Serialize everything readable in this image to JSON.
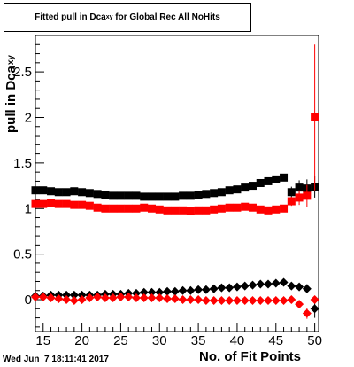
{
  "title": {
    "prefix": "Fitted pull in Dca",
    "subscript": "xy",
    "suffix": " for Global Rec All NoHits"
  },
  "footer": {
    "timestamp": "Wed Jun  7 18:11:41 2017"
  },
  "chart_data": {
    "type": "scatter",
    "title": "Fitted pull in Dca_xy for Global Rec All NoHits",
    "xlabel": "No. of Fit Points",
    "ylabel_main": "pull in Dca",
    "ylabel_sub": "xy",
    "xlim": [
      14,
      50.5
    ],
    "ylim": [
      -0.35,
      2.9
    ],
    "x_ticks": [
      15,
      20,
      25,
      30,
      35,
      40,
      45,
      50
    ],
    "y_ticks": [
      0,
      0.5,
      1,
      1.5,
      2,
      2.5
    ],
    "grid": false,
    "legend": "none",
    "series": [
      {
        "marker": "square",
        "color": "#000000",
        "x": [
          14,
          15,
          16,
          17,
          18,
          19,
          20,
          21,
          22,
          23,
          24,
          25,
          26,
          27,
          28,
          29,
          30,
          31,
          32,
          33,
          34,
          35,
          36,
          37,
          38,
          39,
          40,
          41,
          42,
          43,
          44,
          45,
          46,
          47,
          48,
          49,
          50
        ],
        "y": [
          1.2,
          1.2,
          1.19,
          1.18,
          1.18,
          1.19,
          1.18,
          1.17,
          1.16,
          1.15,
          1.14,
          1.14,
          1.14,
          1.14,
          1.13,
          1.13,
          1.13,
          1.13,
          1.13,
          1.14,
          1.14,
          1.15,
          1.16,
          1.17,
          1.18,
          1.2,
          1.21,
          1.23,
          1.25,
          1.28,
          1.3,
          1.32,
          1.34,
          1.18,
          1.23,
          1.22,
          1.24
        ],
        "yerr": [
          0,
          0,
          0,
          0,
          0,
          0,
          0,
          0,
          0,
          0,
          0,
          0,
          0,
          0,
          0,
          0,
          0,
          0,
          0,
          0,
          0,
          0,
          0,
          0,
          0,
          0,
          0,
          0,
          0,
          0,
          0,
          0,
          0,
          0.06,
          0.08,
          0.1,
          0.12
        ]
      },
      {
        "marker": "square",
        "color": "#ff0000",
        "x": [
          14,
          15,
          16,
          17,
          18,
          19,
          20,
          21,
          22,
          23,
          24,
          25,
          26,
          27,
          28,
          29,
          30,
          31,
          32,
          33,
          34,
          35,
          36,
          37,
          38,
          39,
          40,
          41,
          42,
          43,
          44,
          45,
          46,
          47,
          48,
          49,
          50
        ],
        "y": [
          1.05,
          1.05,
          1.06,
          1.05,
          1.05,
          1.04,
          1.04,
          1.03,
          1.01,
          1.0,
          1.0,
          1.0,
          1.0,
          1.0,
          1.01,
          1.0,
          0.99,
          0.98,
          0.98,
          0.98,
          0.97,
          0.98,
          0.98,
          0.99,
          1.0,
          1.01,
          1.01,
          1.02,
          1.01,
          0.99,
          0.98,
          0.99,
          1.0,
          1.08,
          1.12,
          1.14,
          2.0
        ],
        "yerr": [
          0,
          0,
          0,
          0,
          0,
          0,
          0,
          0,
          0,
          0,
          0,
          0,
          0,
          0,
          0,
          0,
          0,
          0,
          0,
          0,
          0,
          0,
          0,
          0,
          0,
          0,
          0,
          0,
          0,
          0,
          0,
          0,
          0,
          0.05,
          0.08,
          0.12,
          0.8
        ]
      },
      {
        "marker": "diamond",
        "color": "#000000",
        "x": [
          14,
          15,
          16,
          17,
          18,
          19,
          20,
          21,
          22,
          23,
          24,
          25,
          26,
          27,
          28,
          29,
          30,
          31,
          32,
          33,
          34,
          35,
          36,
          37,
          38,
          39,
          40,
          41,
          42,
          43,
          44,
          45,
          46,
          47,
          48,
          49,
          50
        ],
        "y": [
          0.04,
          0.04,
          0.05,
          0.05,
          0.05,
          0.05,
          0.05,
          0.05,
          0.05,
          0.06,
          0.06,
          0.06,
          0.07,
          0.07,
          0.08,
          0.08,
          0.08,
          0.09,
          0.09,
          0.1,
          0.1,
          0.11,
          0.11,
          0.12,
          0.13,
          0.13,
          0.14,
          0.15,
          0.16,
          0.17,
          0.17,
          0.18,
          0.19,
          0.15,
          0.14,
          0.12,
          -0.1
        ],
        "yerr": [
          0,
          0,
          0,
          0,
          0,
          0,
          0,
          0,
          0,
          0,
          0,
          0,
          0,
          0,
          0,
          0,
          0,
          0,
          0,
          0,
          0,
          0,
          0,
          0,
          0,
          0,
          0,
          0,
          0,
          0,
          0,
          0,
          0,
          0,
          0.03,
          0.05,
          0.1
        ]
      },
      {
        "marker": "diamond",
        "color": "#ff0000",
        "x": [
          14,
          15,
          16,
          17,
          18,
          19,
          20,
          21,
          22,
          23,
          24,
          25,
          26,
          27,
          28,
          29,
          30,
          31,
          32,
          33,
          34,
          35,
          36,
          37,
          38,
          39,
          40,
          41,
          42,
          43,
          44,
          45,
          46,
          47,
          48,
          49,
          50
        ],
        "y": [
          0.03,
          0.03,
          0.02,
          0.01,
          0.0,
          -0.01,
          0.0,
          0.02,
          0.03,
          0.02,
          0.02,
          0.03,
          0.03,
          0.02,
          0.02,
          0.02,
          0.02,
          0.01,
          0.01,
          0.0,
          0.0,
          0.0,
          -0.01,
          -0.01,
          -0.01,
          -0.01,
          -0.01,
          -0.01,
          -0.01,
          -0.01,
          -0.01,
          -0.01,
          -0.01,
          0.0,
          -0.05,
          -0.15,
          0.0
        ],
        "yerr": [
          0,
          0,
          0,
          0,
          0,
          0,
          0,
          0,
          0,
          0,
          0,
          0,
          0,
          0,
          0,
          0,
          0,
          0,
          0,
          0,
          0,
          0,
          0,
          0,
          0,
          0,
          0,
          0,
          0,
          0,
          0,
          0,
          0,
          0,
          0.03,
          0.06,
          0.0
        ]
      }
    ]
  }
}
